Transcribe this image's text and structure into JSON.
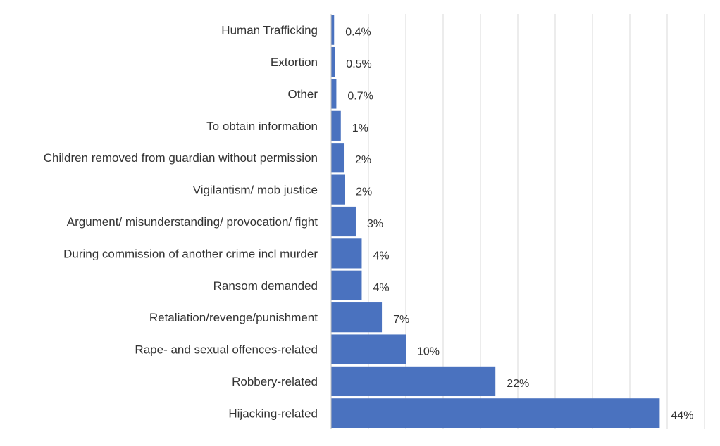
{
  "chart_data": {
    "type": "bar",
    "orientation": "horizontal",
    "title": "",
    "xlabel": "",
    "ylabel": "",
    "categories": [
      "Human Trafficking",
      "Extortion",
      "Other",
      "To obtain information",
      "Children removed from guardian without permission",
      "Vigilantism/ mob justice",
      "Argument/ misunderstanding/ provocation/ fight",
      "During commission of another crime incl murder",
      "Ransom demanded",
      "Retaliation/revenge/punishment",
      "Rape- and sexual offences-related",
      "Robbery-related",
      "Hijacking-related"
    ],
    "values": [
      0.4,
      0.5,
      0.7,
      1.3,
      1.7,
      1.8,
      3.3,
      4.1,
      4.1,
      6.8,
      10,
      22,
      44
    ],
    "data_labels": [
      "0.4%",
      "0.5%",
      "0.7%",
      "1%",
      "2%",
      "2%",
      "3%",
      "4%",
      "4%",
      "7%",
      "10%",
      "22%",
      "44%"
    ],
    "xlim": [
      0,
      50
    ],
    "grid": true,
    "gridline_step": 5,
    "legend": "none",
    "bar_color": "#4a72bf",
    "grid_color": "#d9d9d9",
    "axis_color": "#bfbfbf",
    "text_color": "#333333"
  }
}
